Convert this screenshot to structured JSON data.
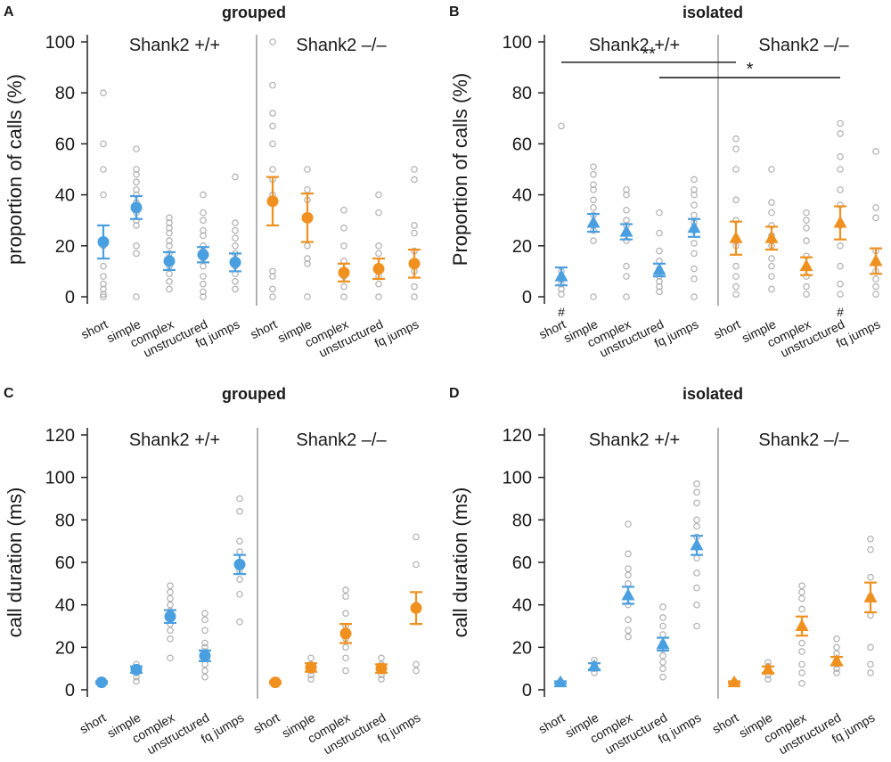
{
  "colors": {
    "wt": "#4a9fe0",
    "ko": "#f0901e",
    "dots": "#b0b0b0",
    "axis": "#222222",
    "divider": "#aaaaaa"
  },
  "chart_data": [
    {
      "panel": "A",
      "title": "grouped",
      "type": "scatter",
      "ylabel": "proportion of calls (%)",
      "ylim": [
        0,
        100
      ],
      "yticks": [
        0,
        20,
        40,
        60,
        80,
        100
      ],
      "groups": [
        "Shank2 +/+",
        "Shank2 –/–"
      ],
      "categories": [
        "short",
        "simple",
        "complex",
        "unstructured",
        "fq jumps"
      ],
      "marker": "circle",
      "series": [
        {
          "name": "Shank2 +/+",
          "means": [
            21.5,
            35,
            14,
            16.5,
            13.5
          ],
          "sem": [
            6.5,
            4.5,
            3.5,
            3,
            3.5
          ],
          "points": [
            [
              80,
              60,
              50,
              40,
              20,
              12,
              8,
              5,
              3,
              1,
              0
            ],
            [
              58,
              50,
              48,
              45,
              42,
              40,
              37,
              33,
              30,
              28,
              20,
              17,
              0
            ],
            [
              31,
              29,
              27,
              25,
              22,
              20,
              17,
              12,
              9,
              6,
              3
            ],
            [
              40,
              33,
              30,
              26,
              24,
              20,
              18,
              15,
              12,
              8,
              5,
              2,
              0
            ],
            [
              47,
              29,
              26,
              23,
              20,
              17,
              14,
              12,
              9,
              6,
              3
            ]
          ]
        },
        {
          "name": "Shank2 –/–",
          "means": [
            37.5,
            31,
            9.5,
            11,
            13
          ],
          "sem": [
            9.5,
            9.5,
            3.5,
            4,
            5.5
          ],
          "points": [
            [
              100,
              83,
              72,
              67,
              60,
              50,
              46,
              40,
              10,
              8,
              3,
              0
            ],
            [
              50,
              42,
              38,
              30,
              20,
              15,
              13,
              0
            ],
            [
              34,
              27,
              20,
              14,
              10,
              8,
              4,
              0
            ],
            [
              40,
              33,
              20,
              17,
              12,
              8,
              5,
              0
            ],
            [
              50,
              46,
              28,
              25,
              18,
              10,
              4,
              0
            ]
          ]
        }
      ]
    },
    {
      "panel": "B",
      "title": "isolated",
      "type": "scatter",
      "ylabel": "Proportion of calls (%)",
      "ylim": [
        0,
        100
      ],
      "yticks": [
        0,
        20,
        40,
        60,
        80,
        100
      ],
      "groups": [
        "Shank2 +/+",
        "Shank2 –/–"
      ],
      "categories": [
        "short",
        "simple",
        "complex",
        "unstructured",
        "fq jumps"
      ],
      "marker": "triangle",
      "series": [
        {
          "name": "Shank2 +/+",
          "means": [
            8,
            29,
            25.5,
            10.5,
            27
          ],
          "sem": [
            3.5,
            3.5,
            3,
            2.5,
            3.5
          ],
          "points": [
            [
              67,
              10,
              7,
              5,
              3,
              1
            ],
            [
              51,
              48,
              44,
              42,
              38,
              35,
              32,
              29,
              26,
              22,
              0
            ],
            [
              42,
              40,
              34,
              30,
              28,
              25,
              22,
              12,
              8,
              0
            ],
            [
              33,
              25,
              18,
              14,
              11,
              8,
              6,
              4,
              2
            ],
            [
              46,
              42,
              40,
              36,
              32,
              29,
              26,
              21,
              17,
              11,
              7,
              0
            ]
          ]
        },
        {
          "name": "Shank2 –/–",
          "means": [
            23,
            23,
            12,
            29,
            14
          ],
          "sem": [
            6.5,
            4.5,
            3.5,
            6.5,
            5
          ],
          "points": [
            [
              62,
              58,
              50,
              38,
              30,
              20,
              12,
              8,
              4,
              1
            ],
            [
              50,
              37,
              33,
              28,
              24,
              20,
              15,
              12,
              8,
              3
            ],
            [
              33,
              30,
              27,
              22,
              16,
              12,
              8,
              4,
              1
            ],
            [
              68,
              64,
              55,
              50,
              42,
              36,
              28,
              20,
              12,
              5,
              1
            ],
            [
              57,
              35,
              31,
              18,
              13,
              10,
              7,
              4,
              1
            ]
          ]
        }
      ],
      "annotations": [
        {
          "text": "**",
          "from": [
            "Shank2 +/+",
            "short"
          ],
          "to": [
            "Shank2 –/–",
            "short"
          ],
          "y": 92
        },
        {
          "text": "*",
          "from": [
            "Shank2 +/+",
            "unstructured"
          ],
          "to": [
            "Shank2 –/–",
            "unstructured"
          ],
          "y": 86
        }
      ],
      "hash_marks": {
        "symbol": "#",
        "categories": [
          "Shank2 +/+ short",
          "Shank2 –/– unstructured"
        ]
      }
    },
    {
      "panel": "C",
      "title": "grouped",
      "type": "scatter",
      "ylabel": "call duration (ms)",
      "ylim": [
        0,
        120
      ],
      "yticks": [
        0,
        20,
        40,
        60,
        80,
        100,
        120
      ],
      "groups": [
        "Shank2 +/+",
        "Shank2 –/–"
      ],
      "categories": [
        "short",
        "simple",
        "complex",
        "unstructured",
        "fq jumps"
      ],
      "marker": "circle",
      "series": [
        {
          "name": "Shank2 +/+",
          "means": [
            3.5,
            9.5,
            34.5,
            16,
            59
          ],
          "sem": [
            0.5,
            1.5,
            3,
            2.5,
            4.5
          ],
          "points": [
            [
              4,
              3
            ],
            [
              12,
              10,
              8,
              6,
              4
            ],
            [
              49,
              46,
              43,
              40,
              37,
              34,
              31,
              28,
              24,
              15
            ],
            [
              36,
              33,
              28,
              22,
              20,
              18,
              15,
              12,
              9,
              6
            ],
            [
              90,
              84,
              70,
              65,
              60,
              56,
              52,
              45,
              32
            ]
          ]
        },
        {
          "name": "Shank2 –/–",
          "means": [
            3.5,
            10.5,
            26.5,
            10,
            38.5
          ],
          "sem": [
            0.5,
            2,
            4.5,
            2,
            7.5
          ],
          "points": [
            [
              4,
              3
            ],
            [
              15,
              12,
              9,
              7,
              5
            ],
            [
              47,
              44,
              36,
              30,
              24,
              20,
              15,
              9
            ],
            [
              15,
              12,
              10,
              7,
              5
            ],
            [
              72,
              59,
              40,
              12,
              9
            ]
          ]
        }
      ]
    },
    {
      "panel": "D",
      "title": "isolated",
      "type": "scatter",
      "ylabel": "call duration (ms)",
      "ylim": [
        0,
        120
      ],
      "yticks": [
        0,
        20,
        40,
        60,
        80,
        100,
        120
      ],
      "groups": [
        "Shank2 +/+",
        "Shank2 –/–"
      ],
      "categories": [
        "short",
        "simple",
        "complex",
        "unstructured",
        "fq jumps"
      ],
      "marker": "triangle",
      "series": [
        {
          "name": "Shank2 +/+",
          "means": [
            3.5,
            11,
            44.5,
            21.5,
            68
          ],
          "sem": [
            0.5,
            1.5,
            4,
            3,
            4.5
          ],
          "points": [
            [
              4,
              3
            ],
            [
              14,
              12,
              10,
              8
            ],
            [
              78,
              64,
              57,
              54,
              50,
              44,
              40,
              33,
              28,
              25
            ],
            [
              39,
              34,
              30,
              26,
              22,
              19,
              16,
              13,
              10,
              6
            ],
            [
              97,
              93,
              88,
              80,
              77,
              72,
              67,
              62,
              55,
              48,
              40,
              30
            ]
          ]
        },
        {
          "name": "Shank2 –/–",
          "means": [
            3.5,
            9.5,
            30,
            13.5,
            43.5
          ],
          "sem": [
            0.5,
            1.5,
            4.5,
            2,
            7
          ],
          "points": [
            [
              4,
              3
            ],
            [
              13,
              11,
              9,
              7,
              5
            ],
            [
              49,
              46,
              43,
              38,
              30,
              22,
              18,
              12,
              8,
              3
            ],
            [
              24,
              20,
              17,
              14,
              12,
              10,
              8
            ],
            [
              71,
              66,
              53,
              44,
              35,
              20,
              12,
              8
            ]
          ]
        }
      ]
    }
  ]
}
